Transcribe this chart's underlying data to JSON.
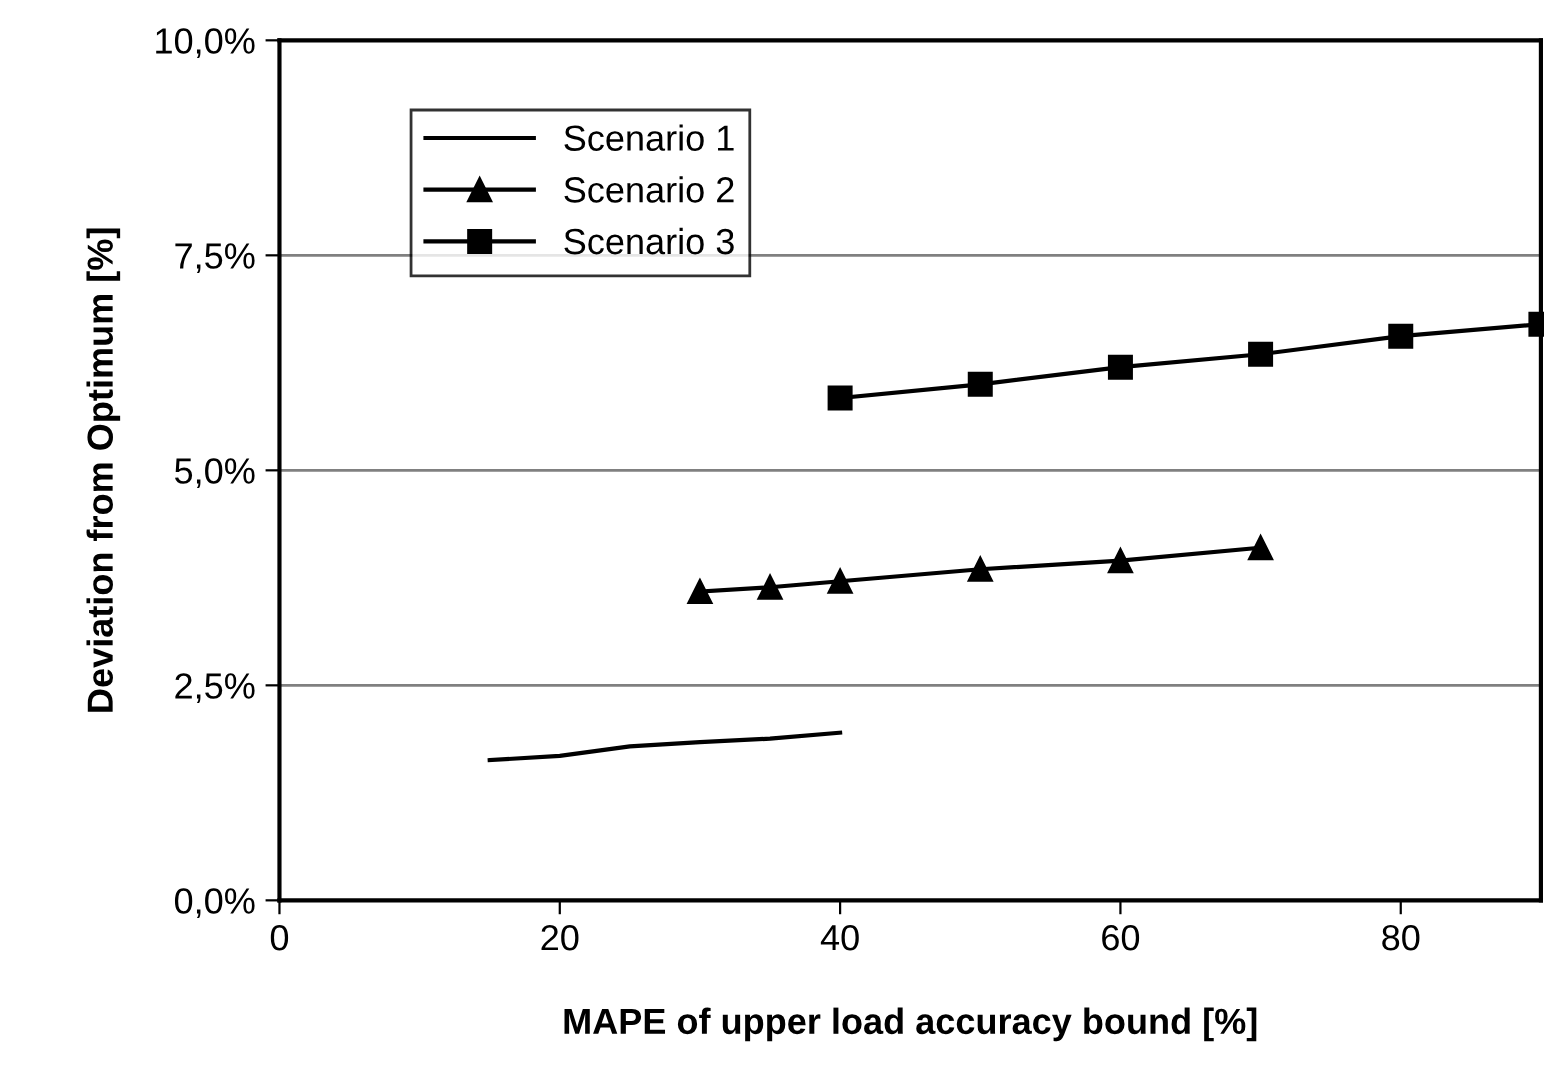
{
  "chart_data": {
    "type": "line",
    "xlabel": "MAPE of upper load accuracy bound [%]",
    "ylabel": "Deviation from Optimum [%]",
    "xlim": [
      0,
      90
    ],
    "xticks": [
      0,
      20,
      40,
      60,
      80
    ],
    "ylim": [
      0,
      10
    ],
    "yticks": [
      {
        "value": 0,
        "label": "0,0%"
      },
      {
        "value": 2.5,
        "label": "2,5%"
      },
      {
        "value": 5,
        "label": "5,0%"
      },
      {
        "value": 7.5,
        "label": "7,5%"
      },
      {
        "value": 10,
        "label": "10,0%"
      }
    ],
    "grid": "y",
    "legend": "top left",
    "series": [
      {
        "name": "Scenario 1",
        "color": "#000000",
        "marker": "none",
        "x": [
          15,
          20,
          25,
          30,
          35,
          40
        ],
        "values": [
          1.63,
          1.68,
          1.79,
          1.84,
          1.88,
          1.95
        ]
      },
      {
        "name": "Scenario 2",
        "color": "#000000",
        "marker": "triangle",
        "x": [
          30,
          35,
          40,
          50,
          60,
          70
        ],
        "values": [
          3.59,
          3.64,
          3.71,
          3.85,
          3.95,
          4.1
        ]
      },
      {
        "name": "Scenario 3",
        "color": "#000000",
        "marker": "square",
        "x": [
          40,
          50,
          60,
          70,
          80,
          90
        ],
        "values": [
          5.84,
          6.0,
          6.2,
          6.35,
          6.56,
          6.7
        ]
      }
    ]
  }
}
